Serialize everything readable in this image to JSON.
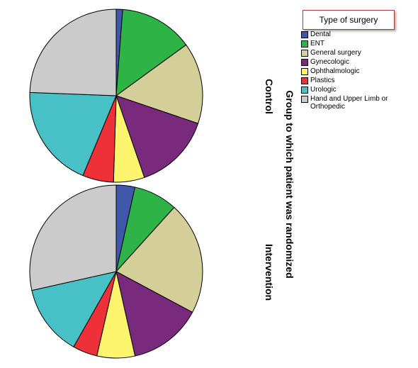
{
  "chart_data": {
    "type": "pie",
    "group_title": "Group to which patient was randomized",
    "legend": {
      "title": "Type of surgery",
      "placement": "top-right"
    },
    "categories": [
      "Dental",
      "ENT",
      "General surgery",
      "Gynecologic",
      "Ophthalmologic",
      "Plastics",
      "Urologic",
      "Hand and Upper Limb or Orthopedic"
    ],
    "colors": [
      "#3f57a8",
      "#2eb446",
      "#d4cf98",
      "#7a2a7c",
      "#fbf46c",
      "#ee3038",
      "#48c1c6",
      "#cbcbcb"
    ],
    "panels": [
      {
        "label": "Control",
        "values": [
          1.2,
          13.8,
          15.2,
          14.5,
          5.8,
          5.8,
          19.3,
          24.4
        ]
      },
      {
        "label": "Intervention",
        "values": [
          3.5,
          8.2,
          21.1,
          13.7,
          7.1,
          4.6,
          13.3,
          28.5
        ]
      }
    ]
  }
}
